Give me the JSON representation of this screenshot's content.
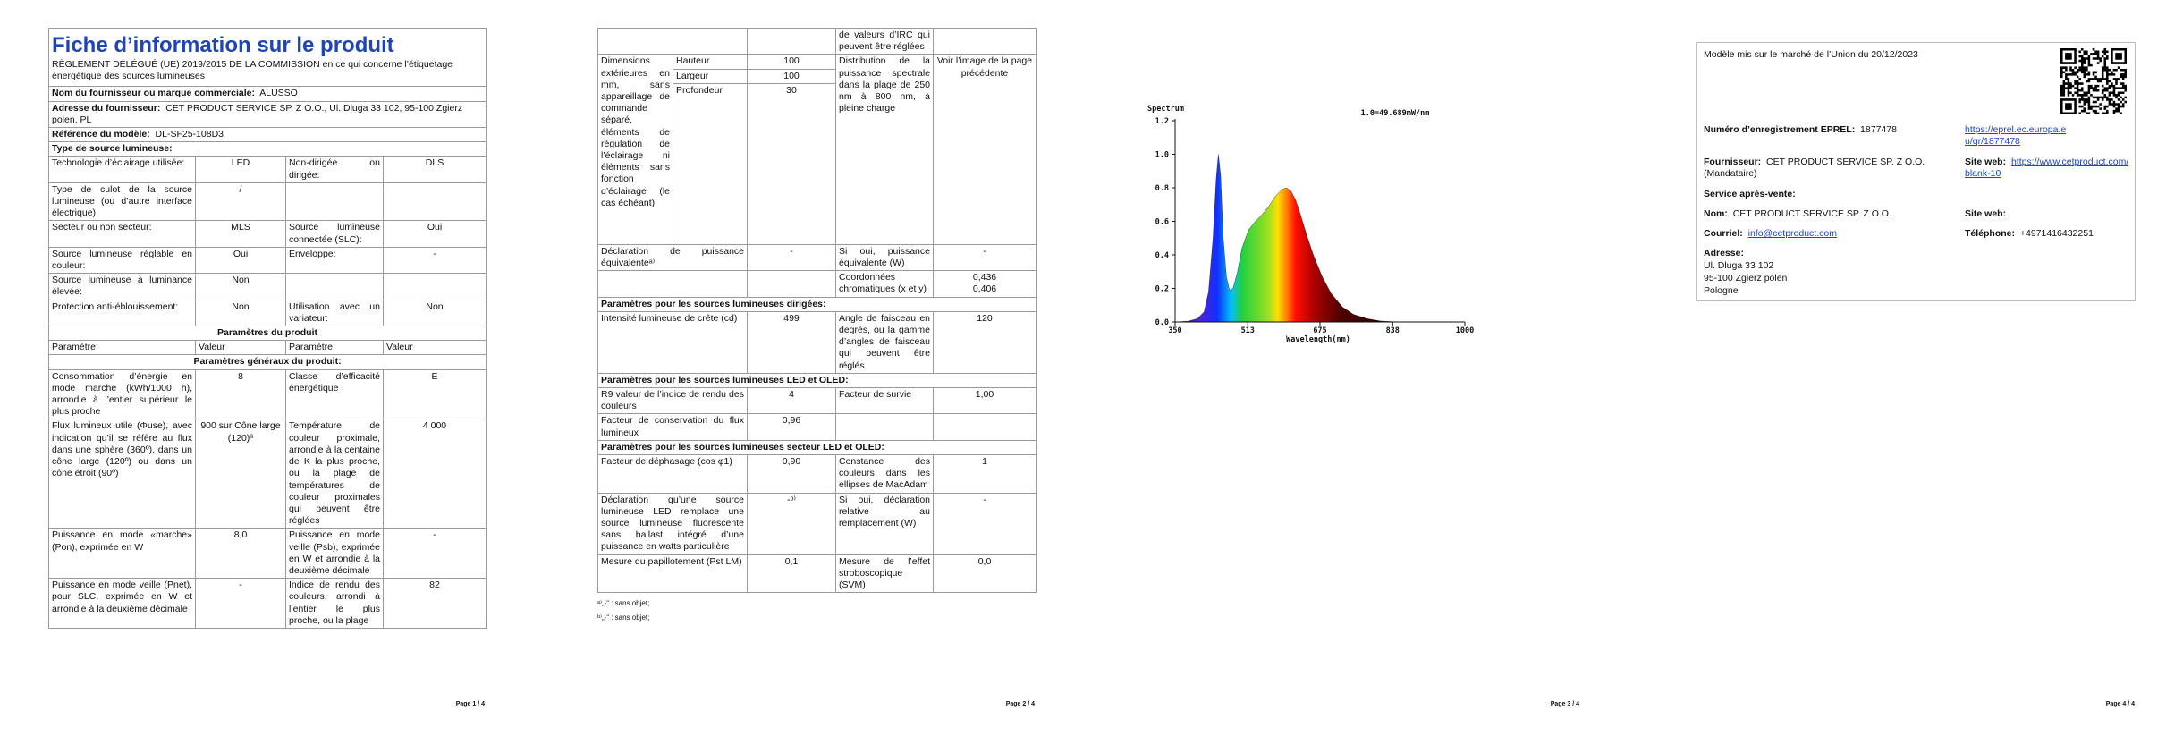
{
  "page1": {
    "title": "Fiche d’information sur le produit",
    "regulation": "RÈGLEMENT DÉLÉGUÉ (UE) 2019/2015 DE LA COMMISSION en ce qui concerne l’étiquetage énergétique des sources lumineuses",
    "supplier_name": {
      "label": "Nom du fournisseur ou marque commerciale:",
      "value": "ALUSSO"
    },
    "supplier_address": {
      "label": "Adresse du fournisseur:",
      "value": "CET PRODUCT SERVICE SP. Z O.O., Ul. Dluga 33 102, 95-100 Zgierz polen, PL"
    },
    "model": {
      "label": "Référence du modèle:",
      "value": "DL-SF25-108D3"
    },
    "light_source_type": "Type de source lumineuse:",
    "type_rows": [
      [
        "Technologie d’éclairage utilisée:",
        "LED",
        "Non-dirigée ou dirigée:",
        "DLS"
      ],
      [
        "Type de culot de la source lumineuse (ou d’autre interface électrique)",
        "/"
      ],
      [
        "Secteur ou non secteur:",
        "MLS",
        "Source lumineuse connectée (SLC):",
        "Oui"
      ],
      [
        "Source lumineuse réglable en couleur:",
        "Oui",
        "Enveloppe:",
        "-"
      ],
      [
        "Source lumineuse à luminance élevée:",
        "Non"
      ],
      [
        "Protection anti-éblouissement:",
        "Non",
        "Utilisation avec un variateur:",
        "Non"
      ]
    ],
    "product_params": "Paramètres du produit",
    "header": [
      "Paramètre",
      "Valeur",
      "Paramètre",
      "Valeur"
    ],
    "general": "Paramètres généraux du produit:",
    "rows": [
      [
        "Consommation d’énergie en mode marche (kWh/1000 h), arrondie à l’entier supérieur le plus proche",
        8,
        "Classe d’efficacité énergétique",
        "E"
      ],
      [
        "Flux lumineux utile (Φuse), avec indication qu’il se réfère au flux dans une sphère (360º), dans un cône large (120º) ou dans un cône étroit (90º)",
        "900 sur Cône large (120)ª",
        "Température de couleur proximale, arrondie à la centaine de K la plus proche, ou la plage de températures de couleur proximales qui peuvent être réglées",
        "4 000"
      ],
      [
        "Puissance en mode «marche» (Pon), exprimée en W",
        "8,0",
        "Puissance en mode veille (Psb), exprimée en W et arrondie à la deuxième décimale",
        "-"
      ],
      [
        "Puissance en mode veille (Pnet), pour SLC, exprimée en W et arrondie à la deuxième décimale",
        "-",
        "Indice de rendu des couleurs, arrondi à l’entier le plus proche, ou la plage",
        82
      ]
    ],
    "footer": "Page 1 / 4"
  },
  "page2": {
    "continuation": "de valeurs d’IRC qui peuvent être réglées",
    "dimensions": {
      "label": "Dimensions extérieures en mm, sans appareillage de commande séparé, éléments de régulation de l’éclairage ni éléments sans fonction d’éclairage (le cas échéant)",
      "items": [
        {
          "name": "Hauteur",
          "value": 100
        },
        {
          "name": "Largeur",
          "value": 100
        },
        {
          "name": "Profondeur",
          "value": 30
        }
      ]
    },
    "spd": {
      "label": "Distribution de la puissance spectrale dans la plage de 250 nm à 800 nm, à pleine charge",
      "value": "Voir l’image de la page précédente"
    },
    "equivalent": [
      "Déclaration de puissance équivalenteᵃ⁾",
      "-",
      "Si oui, puissance équivalente (W)",
      "-"
    ],
    "chromaticity": {
      "label": "Coordonnées chromatiques (x et y)",
      "values": [
        "0,436",
        "0,406"
      ]
    },
    "directional": {
      "heading": "Paramètres pour les sources lumineuses dirigées:",
      "rows": [
        [
          "Intensité lumineuse de crête (cd)",
          499,
          "Angle de faisceau en degrés, ou la gamme d’angles de faisceau qui peuvent être réglés",
          120
        ]
      ]
    },
    "led": {
      "heading": "Paramètres pour les sources lumineuses LED et OLED:",
      "rows": [
        [
          "R9 valeur de l’indice de rendu des couleurs",
          4,
          "Facteur de survie",
          "1,00"
        ],
        [
          "Facteur de conservation du flux lumineux",
          "0,96"
        ]
      ]
    },
    "mains": {
      "heading": "Paramètres pour les sources lumineuses secteur LED et OLED:",
      "rows": [
        [
          "Facteur de déphasage (cos φ1)",
          "0,90",
          "Constance des couleurs dans les ellipses de MacAdam",
          1
        ],
        [
          "Déclaration qu’une source lumineuse LED remplace une source lumineuse fluorescente sans ballast intégré d’une puissance en watts particulière",
          "-ᵇ⁾",
          "Si oui, déclaration relative au remplacement (W)",
          "-"
        ],
        [
          "Mesure du papillotement (Pst LM)",
          "0,1",
          "Mesure de l’effet stroboscopique (SVM)",
          "0,0"
        ]
      ]
    },
    "notes": [
      "ᵃ⁾„-“ : sans objet;",
      "ᵇ⁾„-“ : sans objet;"
    ],
    "footer": "Page 2 / 4"
  },
  "chart_data": {
    "type": "area",
    "title": "Spectrum",
    "subtitle": "1.0=49.689mW/nm",
    "x_label": "Wavelength(nm)",
    "x": [
      350,
      380,
      400,
      415,
      425,
      435,
      442,
      447,
      452,
      458,
      465,
      472,
      480,
      490,
      500,
      515,
      530,
      545,
      560,
      575,
      590,
      600,
      610,
      620,
      630,
      645,
      660,
      680,
      700,
      725,
      750,
      780,
      810,
      850
    ],
    "values": [
      0,
      0.005,
      0.02,
      0.06,
      0.18,
      0.5,
      0.85,
      1.0,
      0.88,
      0.5,
      0.27,
      0.19,
      0.2,
      0.3,
      0.44,
      0.55,
      0.6,
      0.64,
      0.69,
      0.75,
      0.79,
      0.8,
      0.78,
      0.73,
      0.65,
      0.52,
      0.4,
      0.27,
      0.17,
      0.09,
      0.045,
      0.02,
      0.006,
      0
    ],
    "xlim": [
      350,
      1000
    ],
    "ylim": [
      0,
      1.2
    ],
    "xticks": [
      350,
      513,
      675,
      838,
      1000
    ],
    "yticks": [
      {
        "value": 0,
        "label": "0.0"
      },
      0.2,
      0.4,
      0.6,
      0.8,
      {
        "value": 1,
        "label": "1.0"
      },
      1.2
    ],
    "footer": "Page 3 / 4"
  },
  "page4": {
    "market": "Modèle mis sur le marché de l’Union du 20/12/2023",
    "eprel": {
      "label": "Numéro d’enregistrement EPREL:",
      "value": "1877478",
      "url": "https://eprel.ec.europa.eu/qr/1877478"
    },
    "supplier": {
      "label": "Fournisseur:",
      "value": "CET PRODUCT SERVICE SP. Z O.O. (Mandataire)"
    },
    "supplier_web": {
      "label": "Site web:",
      "value": "https://www.cetproduct.com/blank-10"
    },
    "service": "Service après-vente:",
    "name": {
      "label": "Nom:",
      "value": "CET PRODUCT SERVICE SP. Z O.O."
    },
    "service_web": {
      "label": "Site web:"
    },
    "email": {
      "label": "Courriel:",
      "value": "info@cetproduct.com"
    },
    "phone": {
      "label": "Téléphone:",
      "value": "+4971416432251"
    },
    "address": {
      "label": "Adresse:",
      "lines": [
        "Ul. Dluga 33 102",
        "95-100 Zgierz polen",
        "Pologne"
      ]
    },
    "footer": "Page 4 / 4"
  }
}
